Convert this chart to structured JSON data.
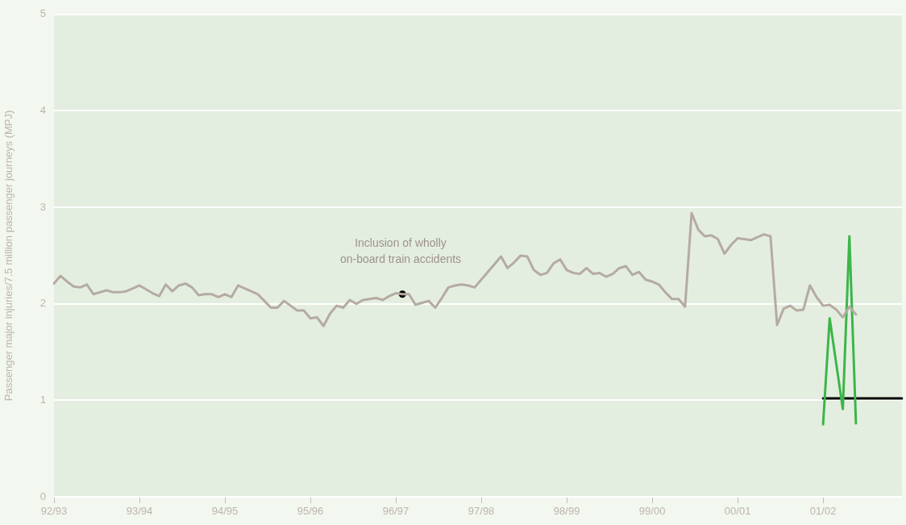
{
  "chart_data": {
    "type": "line",
    "ylabel": "Passenger major injuries/7.5 million passenger journeys (MPJ)",
    "categories": [
      "92/93",
      null,
      null,
      null,
      null,
      null,
      null,
      null,
      null,
      null,
      null,
      null,
      null,
      "93/94",
      null,
      null,
      null,
      null,
      null,
      null,
      null,
      null,
      null,
      null,
      null,
      null,
      "94/95",
      null,
      null,
      null,
      null,
      null,
      null,
      null,
      null,
      null,
      null,
      null,
      null,
      "95/96",
      null,
      null,
      null,
      null,
      null,
      null,
      null,
      null,
      null,
      null,
      null,
      null,
      "96/97",
      null,
      null,
      null,
      null,
      null,
      null,
      null,
      null,
      null,
      null,
      null,
      null,
      "97/98",
      null,
      null,
      null,
      null,
      null,
      null,
      null,
      null,
      null,
      null,
      null,
      null,
      "98/99",
      null,
      null,
      null,
      null,
      null,
      null,
      null,
      null,
      null,
      null,
      null,
      null,
      "99/00",
      null,
      null,
      null,
      null,
      null,
      null,
      null,
      null,
      null,
      null,
      null,
      null,
      "00/01",
      null,
      null,
      null,
      null,
      null,
      null,
      null,
      null,
      null,
      null,
      null,
      null,
      "01/02",
      null,
      null,
      null,
      null,
      null,
      null,
      null,
      null,
      null,
      null,
      null,
      null
    ],
    "ylim": [
      0,
      5
    ],
    "yticks": [
      0,
      1,
      2,
      3,
      4,
      5
    ],
    "grid": "y",
    "legend": false,
    "marker": "none",
    "line_style": "solid",
    "series": [
      {
        "color": "#b5aba3",
        "values": [
          2.21,
          2.29,
          2.23,
          2.18,
          2.17,
          2.2,
          2.1,
          2.12,
          2.14,
          2.12,
          2.12,
          2.13,
          2.16,
          2.19,
          2.15,
          2.11,
          2.08,
          2.2,
          2.13,
          2.19,
          2.21,
          2.17,
          2.09,
          2.1,
          2.1,
          2.07,
          2.1,
          2.07,
          2.19,
          2.16,
          2.13,
          2.1,
          2.03,
          1.96,
          1.96,
          2.03,
          1.98,
          1.93,
          1.93,
          1.85,
          1.86,
          1.77,
          1.9,
          1.98,
          1.96,
          2.04,
          2.0,
          2.04,
          2.05,
          2.06,
          2.04,
          2.08,
          2.11,
          2.1,
          2.1,
          1.99,
          2.01,
          2.03,
          1.96,
          2.06,
          2.17,
          2.19,
          2.2,
          2.19,
          2.17,
          2.25,
          2.33,
          2.41,
          2.49,
          2.37,
          2.43,
          2.5,
          2.49,
          2.35,
          2.3,
          2.32,
          2.42,
          2.46,
          2.35,
          2.32,
          2.31,
          2.37,
          2.31,
          2.32,
          2.28,
          2.31,
          2.37,
          2.39,
          2.3,
          2.33,
          2.25,
          2.23,
          2.2,
          2.12,
          2.05,
          2.05,
          1.97,
          2.94,
          2.77,
          2.7,
          2.71,
          2.67,
          2.52,
          2.61,
          2.68,
          2.67,
          2.66,
          2.69,
          2.72,
          2.7,
          1.78,
          1.95,
          1.98,
          1.93,
          1.94,
          2.19,
          2.07,
          1.98,
          1.99,
          1.94,
          1.86,
          1.97,
          1.89,
          null,
          null,
          null,
          null,
          null,
          null,
          null
        ]
      },
      {
        "color": "#3cb54a",
        "values": [
          null,
          null,
          null,
          null,
          null,
          null,
          null,
          null,
          null,
          null,
          null,
          null,
          null,
          null,
          null,
          null,
          null,
          null,
          null,
          null,
          null,
          null,
          null,
          null,
          null,
          null,
          null,
          null,
          null,
          null,
          null,
          null,
          null,
          null,
          null,
          null,
          null,
          null,
          null,
          null,
          null,
          null,
          null,
          null,
          null,
          null,
          null,
          null,
          null,
          null,
          null,
          null,
          null,
          null,
          null,
          null,
          null,
          null,
          null,
          null,
          null,
          null,
          null,
          null,
          null,
          null,
          null,
          null,
          null,
          null,
          null,
          null,
          null,
          null,
          null,
          null,
          null,
          null,
          null,
          null,
          null,
          null,
          null,
          null,
          null,
          null,
          null,
          null,
          null,
          null,
          null,
          null,
          null,
          null,
          null,
          null,
          null,
          null,
          null,
          null,
          null,
          null,
          null,
          null,
          null,
          null,
          null,
          null,
          null,
          null,
          null,
          null,
          null,
          null,
          null,
          null,
          null,
          0.75,
          1.85,
          1.38,
          0.91,
          2.7,
          0.76,
          null,
          null,
          null,
          null,
          null,
          null,
          null
        ]
      },
      {
        "color": "#000000",
        "values": [
          null,
          null,
          null,
          null,
          null,
          null,
          null,
          null,
          null,
          null,
          null,
          null,
          null,
          null,
          null,
          null,
          null,
          null,
          null,
          null,
          null,
          null,
          null,
          null,
          null,
          null,
          null,
          null,
          null,
          null,
          null,
          null,
          null,
          null,
          null,
          null,
          null,
          null,
          null,
          null,
          null,
          null,
          null,
          null,
          null,
          null,
          null,
          null,
          null,
          null,
          null,
          null,
          null,
          null,
          null,
          null,
          null,
          null,
          null,
          null,
          null,
          null,
          null,
          null,
          null,
          null,
          null,
          null,
          null,
          null,
          null,
          null,
          null,
          null,
          null,
          null,
          null,
          null,
          null,
          null,
          null,
          null,
          null,
          null,
          null,
          null,
          null,
          null,
          null,
          null,
          null,
          null,
          null,
          null,
          null,
          null,
          null,
          null,
          null,
          null,
          null,
          null,
          null,
          null,
          null,
          null,
          null,
          null,
          null,
          null,
          null,
          null,
          null,
          null,
          null,
          null,
          null,
          1.02,
          1.02,
          1.02,
          1.02,
          1.02,
          1.02,
          1.02,
          1.02,
          1.02,
          1.02,
          1.02,
          1.02,
          1.02
        ]
      },
      {
        "type": "scatter",
        "marker": "circle",
        "color": "#000000",
        "values": [
          null,
          null,
          null,
          null,
          null,
          null,
          null,
          null,
          null,
          null,
          null,
          null,
          null,
          null,
          null,
          null,
          null,
          null,
          null,
          null,
          null,
          null,
          null,
          null,
          null,
          null,
          null,
          null,
          null,
          null,
          null,
          null,
          null,
          null,
          null,
          null,
          null,
          null,
          null,
          null,
          null,
          null,
          null,
          null,
          null,
          null,
          null,
          null,
          null,
          null,
          null,
          null,
          null,
          2.1,
          null,
          null,
          null,
          null,
          null,
          null,
          null,
          null,
          null,
          null,
          null,
          null,
          null,
          null,
          null,
          null,
          null,
          null,
          null,
          null,
          null,
          null,
          null,
          null,
          null,
          null,
          null,
          null,
          null,
          null,
          null,
          null,
          null,
          null,
          null,
          null,
          null,
          null,
          null,
          null,
          null,
          null,
          null,
          null,
          null,
          null,
          null,
          null,
          null,
          null,
          null,
          null,
          null,
          null,
          null,
          null,
          null,
          null,
          null,
          null,
          null,
          null,
          null,
          null,
          null,
          null,
          null,
          null,
          null,
          null,
          null,
          null,
          null,
          null,
          null,
          null
        ]
      }
    ],
    "annotations": [
      "Inclusion of wholly on-board train accidents"
    ]
  }
}
